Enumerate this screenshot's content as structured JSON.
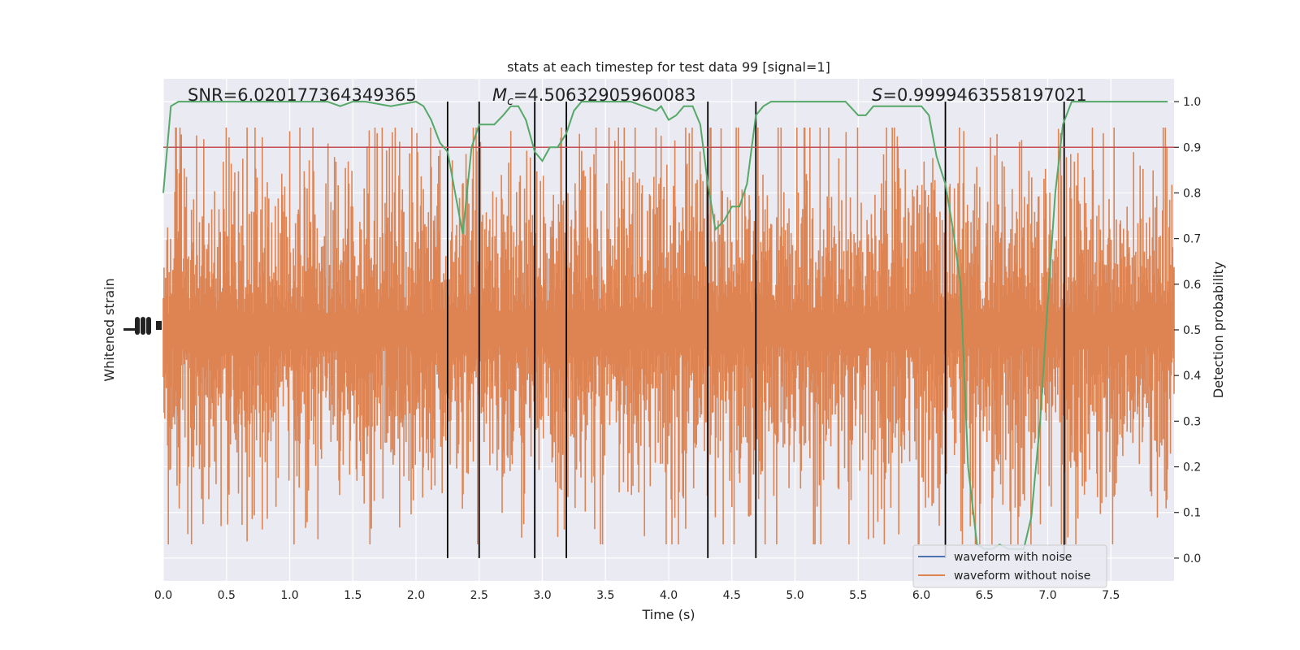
{
  "chart_data": {
    "type": "line",
    "title": "stats at each timestep for test data 99 [signal=1]",
    "xlabel": "Time (s)",
    "ylabel_left": "Whitened strain",
    "ylabel_right": "Detection probability",
    "xlim": [
      0.0,
      8.0
    ],
    "ylim_right": [
      -0.05,
      1.05
    ],
    "x_ticks": [
      0.0,
      0.5,
      1.0,
      1.5,
      2.0,
      2.5,
      3.0,
      3.5,
      4.0,
      4.5,
      5.0,
      5.5,
      6.0,
      6.5,
      7.0,
      7.5
    ],
    "x_tick_labels": [
      "0.0",
      "0.5",
      "1.0",
      "1.5",
      "2.0",
      "2.5",
      "3.0",
      "3.5",
      "4.0",
      "4.5",
      "5.0",
      "5.5",
      "6.0",
      "6.5",
      "7.0",
      "7.5"
    ],
    "y_right_ticks": [
      0.0,
      0.1,
      0.2,
      0.3,
      0.4,
      0.5,
      0.6,
      0.7,
      0.8,
      0.9,
      1.0
    ],
    "y_right_tick_labels": [
      "0.0",
      "0.1",
      "0.2",
      "0.3",
      "0.4",
      "0.5",
      "0.6",
      "0.7",
      "0.8",
      "0.9",
      "1.0"
    ],
    "annotations": {
      "snr": "SNR=6.020177364349365",
      "mc_symbol": "M",
      "mc_sub": "c",
      "mc_value": "=4.50632905960083",
      "s_symbol": "S",
      "s_value": "=0.9999463558197021"
    },
    "threshold": 0.9,
    "event_lines": [
      2.25,
      2.5,
      2.94,
      3.19,
      4.31,
      4.69,
      6.19,
      7.13
    ],
    "series": [
      {
        "name": "waveform with noise",
        "color": "#4c72b0"
      },
      {
        "name": "waveform without noise",
        "color": "#dd8452"
      }
    ],
    "probability": {
      "color": "#55a868",
      "x": [
        0.0,
        0.06,
        0.12,
        0.25,
        0.4,
        0.6,
        0.8,
        1.0,
        1.2,
        1.3,
        1.4,
        1.5,
        1.6,
        1.8,
        2.0,
        2.06,
        2.12,
        2.19,
        2.25,
        2.31,
        2.37,
        2.44,
        2.5,
        2.56,
        2.62,
        2.69,
        2.75,
        2.81,
        2.87,
        2.94,
        3.0,
        3.06,
        3.12,
        3.19,
        3.25,
        3.31,
        3.37,
        3.44,
        3.5,
        3.6,
        3.7,
        3.8,
        3.9,
        3.94,
        4.0,
        4.06,
        4.12,
        4.19,
        4.25,
        4.31,
        4.37,
        4.44,
        4.5,
        4.56,
        4.62,
        4.69,
        4.75,
        4.81,
        4.87,
        4.94,
        5.0,
        5.2,
        5.4,
        5.5,
        5.56,
        5.62,
        5.69,
        5.75,
        5.81,
        5.87,
        5.94,
        6.0,
        6.06,
        6.12,
        6.19,
        6.25,
        6.31,
        6.37,
        6.44,
        6.5,
        6.56,
        6.62,
        6.69,
        6.75,
        6.81,
        6.87,
        6.94,
        7.0,
        7.06,
        7.12,
        7.19,
        7.25,
        7.31,
        7.5,
        7.7,
        7.8,
        7.95
      ],
      "y": [
        0.8,
        0.99,
        1.0,
        1.0,
        1.0,
        1.0,
        1.0,
        1.0,
        1.0,
        1.0,
        0.99,
        1.0,
        1.0,
        0.99,
        1.0,
        0.99,
        0.96,
        0.91,
        0.89,
        0.8,
        0.71,
        0.9,
        0.95,
        0.95,
        0.95,
        0.97,
        0.99,
        0.99,
        0.96,
        0.89,
        0.87,
        0.9,
        0.9,
        0.93,
        0.98,
        1.0,
        1.0,
        1.0,
        1.0,
        1.0,
        1.0,
        0.99,
        0.98,
        0.99,
        0.96,
        0.97,
        0.99,
        0.99,
        0.95,
        0.82,
        0.72,
        0.74,
        0.77,
        0.77,
        0.82,
        0.97,
        0.99,
        1.0,
        1.0,
        1.0,
        1.0,
        1.0,
        1.0,
        0.97,
        0.97,
        0.99,
        0.99,
        0.99,
        0.99,
        0.99,
        0.99,
        0.99,
        0.97,
        0.88,
        0.82,
        0.72,
        0.6,
        0.2,
        0.03,
        0.02,
        0.02,
        0.03,
        0.02,
        0.02,
        0.02,
        0.09,
        0.3,
        0.56,
        0.8,
        0.95,
        1.0,
        1.0,
        1.0,
        1.0,
        1.0,
        1.0,
        1.0
      ]
    },
    "grid": true,
    "legend_position": "lower-right"
  }
}
